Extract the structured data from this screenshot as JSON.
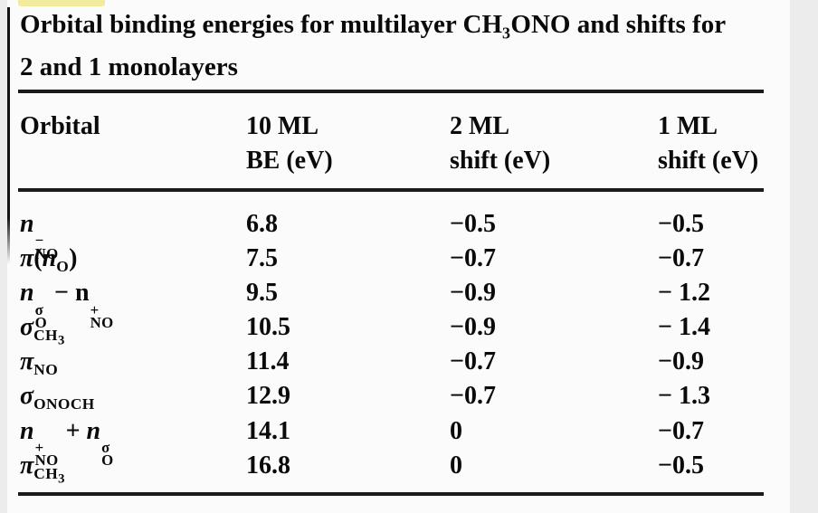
{
  "colors": {
    "margin_bg": "#ececec",
    "paper_bg": "#fbfbfb",
    "ink": "#0a0a0a",
    "rule": "#1a1a1a",
    "highlight_mark": "#f2eb9e"
  },
  "caption": {
    "line1_tokens": [
      {
        "text": "Orbital binding energies for multilayer CH"
      },
      {
        "sub": "3"
      },
      {
        "text": "ONO and shifts for"
      }
    ],
    "line2": "2 and 1 monolayers"
  },
  "table": {
    "headers": [
      {
        "line1": "Orbital",
        "line2": ""
      },
      {
        "line1": "10 ML",
        "line2": "BE (eV)"
      },
      {
        "line1": "2 ML",
        "line2": "shift (eV)"
      },
      {
        "line1": "1 ML",
        "line2": "shift (eV)"
      }
    ],
    "rows": [
      {
        "orbital": [
          {
            "text": "n",
            "italic": true
          },
          {
            "stack": {
              "sup": "−",
              "sub": "NO"
            }
          }
        ],
        "be": "6.8",
        "shift_2ml": "−0.5",
        "shift_1ml": "−0.5"
      },
      {
        "orbital": [
          {
            "text": "π",
            "italic": true
          },
          {
            "text": "("
          },
          {
            "text": "n",
            "italic": true
          },
          {
            "sub": "O"
          },
          {
            "text": ")"
          }
        ],
        "be": "7.5",
        "shift_2ml": "−0.7",
        "shift_1ml": "−0.7"
      },
      {
        "orbital": [
          {
            "text": "n",
            "italic": true
          },
          {
            "stack": {
              "sup": "σ",
              "sub": "O"
            }
          },
          {
            "text": " − "
          },
          {
            "text": "n"
          },
          {
            "stack": {
              "sup": "+",
              "sub": "NO"
            }
          }
        ],
        "be": "9.5",
        "shift_2ml": "−0.9",
        "shift_1ml": "− 1.2"
      },
      {
        "orbital": [
          {
            "text": "σ",
            "italic": true
          },
          {
            "sub": "CH",
            "subsub": "3"
          }
        ],
        "be": "10.5",
        "shift_2ml": "−0.9",
        "shift_1ml": "− 1.4"
      },
      {
        "orbital": [
          {
            "text": "π",
            "italic": true
          },
          {
            "sub": "NO"
          }
        ],
        "be": "11.4",
        "shift_2ml": "−0.7",
        "shift_1ml": "−0.9"
      },
      {
        "orbital": [
          {
            "text": "σ",
            "italic": true
          },
          {
            "sub": "ONOCH"
          }
        ],
        "be": "12.9",
        "shift_2ml": "−0.7",
        "shift_1ml": "− 1.3"
      },
      {
        "orbital": [
          {
            "text": "n",
            "italic": true
          },
          {
            "stack": {
              "sup": "+",
              "sub": "NO"
            }
          },
          {
            "text": " + "
          },
          {
            "text": "n",
            "italic": true
          },
          {
            "stack": {
              "sup": "σ",
              "sub": "O"
            }
          }
        ],
        "be": "14.1",
        "shift_2ml": "0",
        "shift_1ml": "−0.7"
      },
      {
        "orbital": [
          {
            "text": "π",
            "italic": true
          },
          {
            "sub": "CH",
            "subsub": "3"
          }
        ],
        "be": "16.8",
        "shift_2ml": "0",
        "shift_1ml": "−0.5"
      }
    ]
  }
}
